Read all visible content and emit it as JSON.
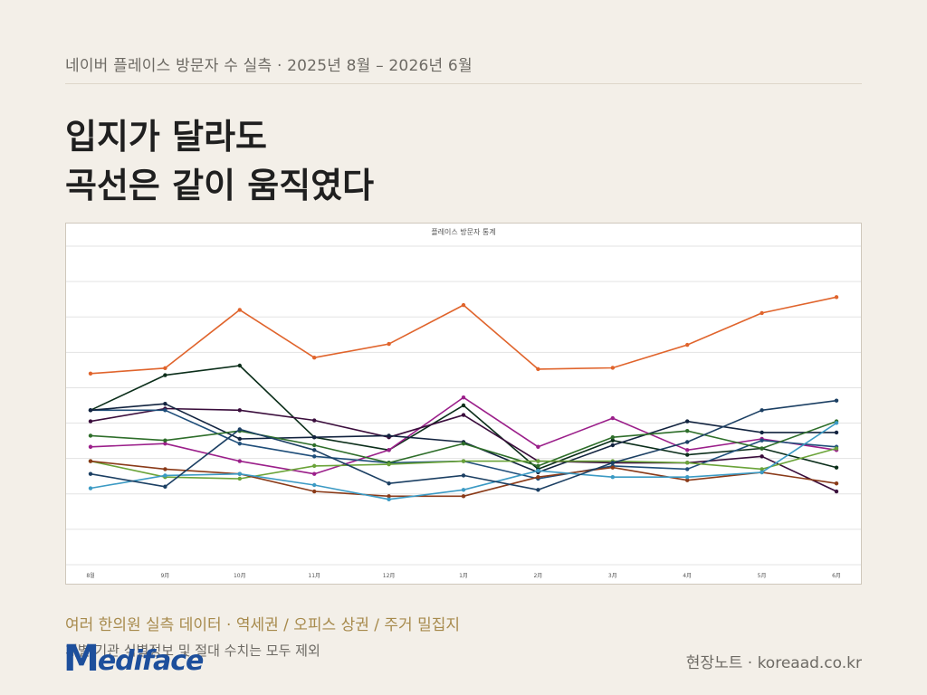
{
  "header": {
    "caption": "네이버 플레이스 방문자 수 실측  ·  2025년 8월 – 2026년 6월"
  },
  "headline": {
    "line1": "입지가 달라도",
    "line2": "곡선은 같이 움직였다"
  },
  "footer": {
    "subtitle": "여러 한의원 실측 데이터 · 역세권 / 오피스 상권 / 주거 밀집지",
    "note": "개별 기관 식별정보 및 절대 수치는 모두 제외",
    "logo_text": "ediface",
    "logo_initial": "M",
    "credit": "현장노트  ·  koreaad.co.kr"
  },
  "chart_data": {
    "type": "line",
    "title": "플레이스 방문자 통계",
    "categories": [
      "8월",
      "9月",
      "10月",
      "11月",
      "12月",
      "1月",
      "2月",
      "3月",
      "4月",
      "5月",
      "6月"
    ],
    "ylim": [
      0,
      100
    ],
    "y_grid_count": 9,
    "grid": true,
    "legend": "none",
    "series": [
      {
        "color": "#e0642c",
        "values": [
          60,
          61.7,
          80,
          65,
          69.3,
          81.5,
          61.4,
          61.8,
          69,
          79,
          84
        ]
      },
      {
        "color": "#0b2e1a",
        "values": [
          48.5,
          59.5,
          62.5,
          40,
          36,
          50,
          30,
          39,
          34.5,
          36.5,
          30.5
        ]
      },
      {
        "color": "#9b1f8a",
        "values": [
          37,
          38,
          32.5,
          28.5,
          36,
          52.5,
          37,
          46,
          36,
          39.5,
          36
        ]
      },
      {
        "color": "#3a0d3c",
        "values": [
          45,
          49,
          48.5,
          45.3,
          40,
          47,
          32.5,
          32,
          32,
          34,
          23
        ]
      },
      {
        "color": "#1f4e7a",
        "values": [
          48.5,
          48.5,
          38,
          34,
          32,
          32.5,
          27,
          31,
          30,
          39,
          37
        ]
      },
      {
        "color": "#12233f",
        "values": [
          48.5,
          50.5,
          39.5,
          40,
          40.5,
          38.5,
          29,
          37.5,
          45,
          41.5,
          41.5
        ]
      },
      {
        "color": "#2e6e2a",
        "values": [
          40.5,
          39,
          42,
          37.5,
          32,
          38,
          31,
          40,
          42,
          36.5,
          45
        ]
      },
      {
        "color": "#6aa338",
        "values": [
          32.5,
          27.5,
          27,
          31,
          31.5,
          32.5,
          32.5,
          32.5,
          32,
          30,
          36.5
        ]
      },
      {
        "color": "#8a3a18",
        "values": [
          32.5,
          30,
          28.5,
          23,
          21.5,
          21.5,
          27.5,
          30.5,
          26.5,
          29,
          25.5
        ]
      },
      {
        "color": "#3b9ac4",
        "values": [
          24,
          28,
          28.5,
          25,
          20.5,
          23.5,
          29.5,
          27.5,
          27.5,
          29,
          44.5
        ]
      },
      {
        "color": "#1b3f63",
        "values": [
          28.5,
          24.5,
          42.5,
          36,
          25.5,
          28,
          23.5,
          32,
          38.5,
          48.5,
          51.5
        ]
      }
    ]
  }
}
